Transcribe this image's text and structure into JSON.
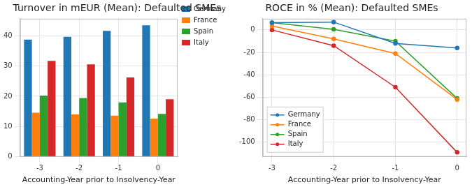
{
  "chart_data": [
    {
      "type": "bar",
      "title": "Turnover in mEUR (Mean): Defaulted SMEs",
      "x_label": "Accounting-Year prior to Insolvency-Year",
      "categories": [
        "-3",
        "-2",
        "-1",
        "0"
      ],
      "series": [
        {
          "name": "Germany",
          "color": "#1f77b4",
          "values": [
            38.7,
            39.6,
            41.6,
            43.4
          ]
        },
        {
          "name": "France",
          "color": "#ff7f0e",
          "values": [
            14.6,
            14.0,
            13.6,
            12.6
          ]
        },
        {
          "name": "Spain",
          "color": "#2ca02c",
          "values": [
            20.2,
            19.4,
            18.0,
            14.2
          ]
        },
        {
          "name": "Italy",
          "color": "#d62728",
          "values": [
            31.7,
            30.5,
            26.2,
            19.0
          ]
        }
      ],
      "ylim": [
        0,
        45.6
      ],
      "yticks": [
        0,
        10,
        20,
        30,
        40
      ],
      "grid": true,
      "legend": "upper right"
    },
    {
      "type": "line",
      "title": "ROCE in % (Mean): Defaulted SMEs",
      "x_label": "Accounting-Year prior to Insolvency-Year",
      "x": [
        -3,
        -2,
        -1,
        0
      ],
      "xlim": [
        -3.15,
        0.15
      ],
      "xticks": [
        -3,
        -2,
        -1,
        0
      ],
      "marker": "circle",
      "series": [
        {
          "name": "Germany",
          "color": "#1f77b4",
          "values": [
            6.5,
            7,
            -12,
            -16
          ]
        },
        {
          "name": "France",
          "color": "#ff7f0e",
          "values": [
            3.5,
            -8,
            -21,
            -62
          ]
        },
        {
          "name": "Spain",
          "color": "#2ca02c",
          "values": [
            6.5,
            0.5,
            -10,
            -61
          ]
        },
        {
          "name": "Italy",
          "color": "#d62728",
          "values": [
            0,
            -14,
            -51,
            -109
          ]
        }
      ],
      "ylim": [
        -113,
        10
      ],
      "yticks": [
        0,
        -20,
        -40,
        -60,
        -80,
        -100
      ],
      "grid": true,
      "legend": "lower left"
    }
  ]
}
